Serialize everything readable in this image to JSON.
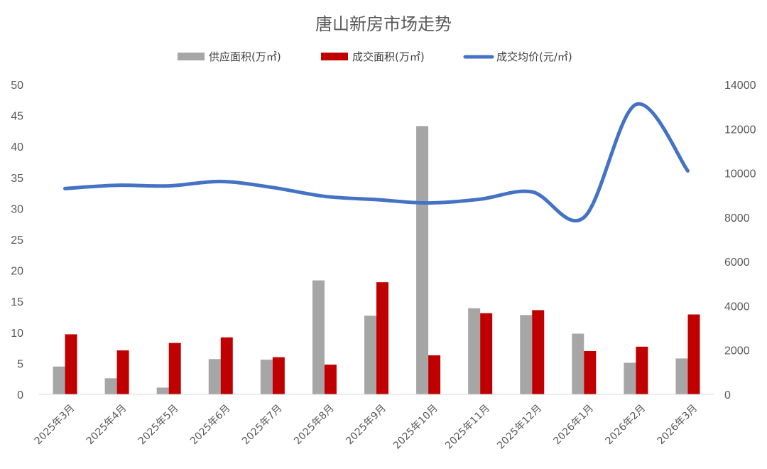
{
  "chart_data": {
    "type": "bar",
    "title": "唐山新房市场走势",
    "categories": [
      "2025年3月",
      "2025年4月",
      "2025年5月",
      "2025年6月",
      "2025年7月",
      "2025年8月",
      "2025年9月",
      "2025年10月",
      "2025年11月",
      "2025年12月",
      "2026年1月",
      "2026年2月",
      "2026年3月"
    ],
    "series": [
      {
        "name": "供应面积(万㎡)",
        "type": "bar",
        "axis": "left",
        "color": "#a6a6a6",
        "values": [
          4.5,
          2.6,
          1.1,
          5.7,
          5.6,
          18.4,
          12.7,
          43.3,
          13.9,
          12.8,
          9.8,
          5.1,
          5.8
        ]
      },
      {
        "name": "成交面积(万㎡)",
        "type": "bar",
        "axis": "left",
        "color": "#c00000",
        "values": [
          9.7,
          7.1,
          8.3,
          9.2,
          6.0,
          4.8,
          18.1,
          6.3,
          13.1,
          13.6,
          7.0,
          7.7,
          12.9
        ]
      },
      {
        "name": "成交均价(元/㎡)",
        "type": "line",
        "axis": "right",
        "color": "#4472c4",
        "values": [
          9300,
          9450,
          9420,
          9620,
          9350,
          8950,
          8800,
          8650,
          8820,
          9150,
          8000,
          13100,
          10100
        ]
      }
    ],
    "y_left": {
      "min": 0,
      "max": 50,
      "step": 5,
      "ticks": [
        "0",
        "5",
        "10",
        "15",
        "20",
        "25",
        "30",
        "35",
        "40",
        "45",
        "50"
      ]
    },
    "y_right": {
      "min": 0,
      "max": 14000,
      "step": 2000,
      "ticks": [
        "0",
        "2000",
        "4000",
        "6000",
        "8000",
        "10000",
        "12000",
        "14000"
      ]
    },
    "legend_position": "top-center",
    "grid": false
  }
}
